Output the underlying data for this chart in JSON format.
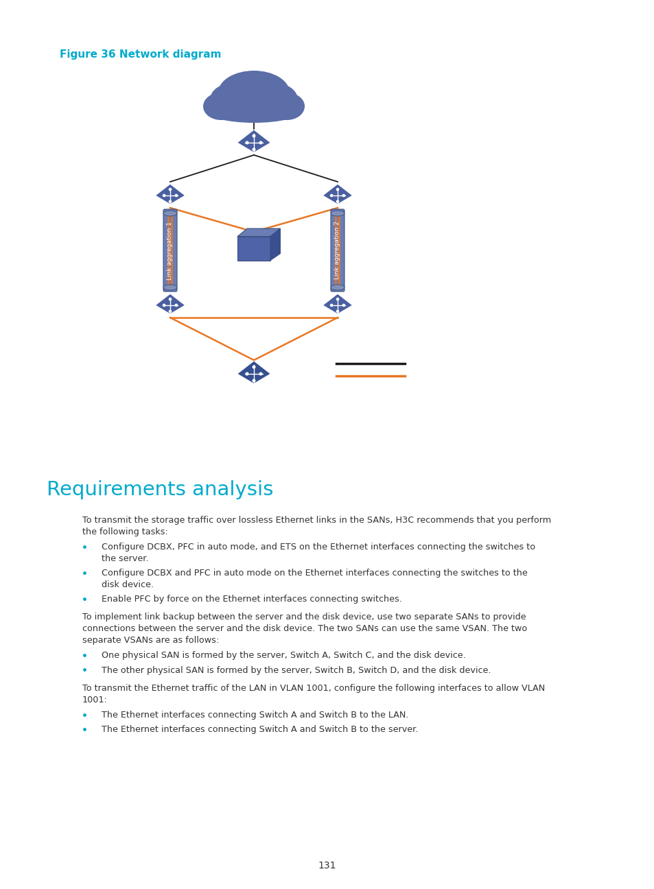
{
  "figure_label": "Figure 36 Network diagram",
  "figure_label_color": "#00aacc",
  "section_title": "Requirements analysis",
  "section_title_color": "#00aacc",
  "body_color": "#333333",
  "bullet_color": "#00aacc",
  "page_number": "131",
  "background_color": "#ffffff",
  "orange_line_color": "#e87722",
  "black_line_color": "#1a1a1a",
  "switch_color": "#4a5fa0",
  "switch_dark": "#3a4f80",
  "switch_light": "#6a7db5",
  "cloud_color": "#5b6ea8",
  "link_color": "#6a7db5"
}
